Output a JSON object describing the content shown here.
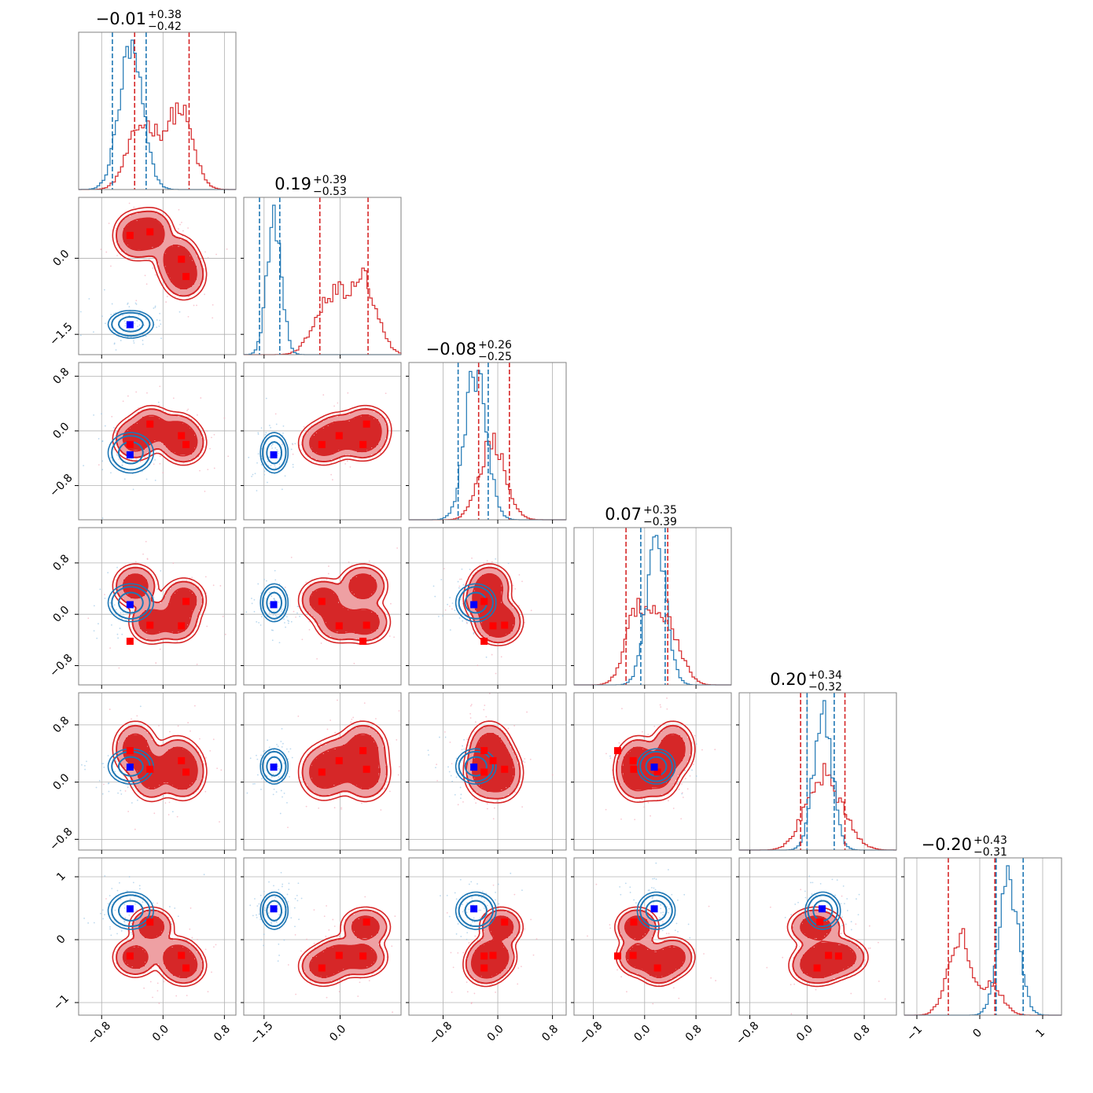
{
  "chart_data": {
    "type": "corner",
    "n_params": 6,
    "colors": {
      "posterior_a": "#d62728",
      "posterior_b": "#1f77b4",
      "truth_a": "#ff0000",
      "truth_b": "#0000ff",
      "grid": "#b0b0b0"
    },
    "grid": true,
    "contour_levels": [
      "1-sigma",
      "2-sigma"
    ],
    "ranges": [
      [
        -1.1,
        0.95
      ],
      [
        -1.9,
        1.2
      ],
      [
        -1.3,
        1.0
      ],
      [
        -1.1,
        1.35
      ],
      [
        -0.95,
        1.25
      ],
      [
        -1.2,
        1.3
      ]
    ],
    "marginal_titles": [
      {
        "median": "−0.01",
        "plus": "+0.38",
        "minus": "−0.42"
      },
      {
        "median": "0.19",
        "plus": "+0.39",
        "minus": "−0.53"
      },
      {
        "median": "−0.08",
        "plus": "+0.26",
        "minus": "−0.25"
      },
      {
        "median": "0.07",
        "plus": "+0.35",
        "minus": "−0.39"
      },
      {
        "median": "0.20",
        "plus": "+0.34",
        "minus": "−0.32"
      },
      {
        "median": "−0.20",
        "plus": "+0.43",
        "minus": "−0.31"
      }
    ],
    "ticks_x": [
      {
        "values": [
          -0.8,
          0.0,
          0.8
        ],
        "labels": [
          "−0.8",
          "0.0",
          "0.8"
        ]
      },
      {
        "values": [
          -1.5,
          0.0
        ],
        "labels": [
          "−1.5",
          "0.0"
        ]
      },
      {
        "values": [
          -0.8,
          0.0,
          0.8
        ],
        "labels": [
          "−0.8",
          "0.0",
          "0.8"
        ]
      },
      {
        "values": [
          -0.8,
          0.0,
          0.8
        ],
        "labels": [
          "−0.8",
          "0.0",
          "0.8"
        ]
      },
      {
        "values": [
          -0.8,
          0.0,
          0.8
        ],
        "labels": [
          "−0.8",
          "0.0",
          "0.8"
        ]
      },
      {
        "values": [
          -1,
          0,
          1
        ],
        "labels": [
          "−1",
          "0",
          "1"
        ]
      }
    ],
    "ticks_y": [
      null,
      {
        "values": [
          0.0,
          -1.5
        ],
        "labels": [
          "0.0",
          "−1.5"
        ]
      },
      {
        "values": [
          0.8,
          0.0,
          -0.8
        ],
        "labels": [
          "0.8",
          "0.0",
          "−0.8"
        ]
      },
      {
        "values": [
          0.8,
          0.0,
          -0.8
        ],
        "labels": [
          "0.8",
          "0.0",
          "−0.8"
        ]
      },
      {
        "values": [
          0.8,
          0.0,
          -0.8
        ],
        "labels": [
          "0.8",
          "0.0",
          "−0.8"
        ]
      },
      {
        "values": [
          1,
          0,
          -1
        ],
        "labels": [
          "1",
          "0",
          "−1"
        ]
      }
    ],
    "quantile_lines": {
      "posterior_a": [
        [
          -0.37,
          0.34
        ],
        [
          -0.4,
          0.55
        ],
        [
          -0.28,
          0.17
        ],
        [
          -0.29,
          0.36
        ],
        [
          -0.09,
          0.53
        ],
        [
          -0.5,
          0.24
        ]
      ],
      "posterior_b": [
        [
          -0.66,
          -0.22
        ],
        [
          -1.59,
          -1.19
        ],
        [
          -0.58,
          -0.14
        ],
        [
          -0.06,
          0.32
        ],
        [
          0.0,
          0.38
        ],
        [
          0.26,
          0.69
        ]
      ]
    },
    "truth_points": {
      "blue": [
        -0.43,
        -1.31,
        -0.35,
        0.15,
        0.21,
        0.49
      ],
      "red": [
        [
          -0.43,
          0.45,
          -0.2,
          -0.42,
          0.44,
          -0.26
        ],
        [
          -0.17,
          0.52,
          0.1,
          -0.17,
          0.18,
          0.28
        ],
        [
          0.24,
          -0.02,
          -0.07,
          -0.18,
          0.3,
          -0.25
        ],
        [
          0.3,
          -0.36,
          -0.2,
          0.2,
          0.14,
          -0.45
        ]
      ]
    },
    "posterior_b_modes": [
      {
        "mean": [
          -0.42,
          -1.3,
          -0.32,
          0.18,
          0.22,
          0.46
        ],
        "sd": [
          0.12,
          0.11,
          0.12,
          0.12,
          0.1,
          0.12
        ]
      }
    ],
    "posterior_a_modes": [
      {
        "mean": [
          -0.36,
          0.45,
          -0.12,
          0.44,
          0.46,
          -0.28
        ],
        "sd": [
          0.12,
          0.2,
          0.13,
          0.14,
          0.16,
          0.13
        ]
      },
      {
        "mean": [
          -0.15,
          0.5,
          0.05,
          -0.12,
          0.12,
          0.2
        ],
        "sd": [
          0.12,
          0.2,
          0.13,
          0.14,
          0.16,
          0.13
        ]
      },
      {
        "mean": [
          0.18,
          -0.02,
          -0.05,
          -0.1,
          0.25,
          -0.27
        ],
        "sd": [
          0.12,
          0.2,
          0.13,
          0.14,
          0.16,
          0.13
        ]
      },
      {
        "mean": [
          0.27,
          -0.33,
          -0.18,
          0.22,
          0.14,
          -0.42
        ],
        "sd": [
          0.12,
          0.2,
          0.13,
          0.14,
          0.16,
          0.13
        ]
      }
    ]
  }
}
